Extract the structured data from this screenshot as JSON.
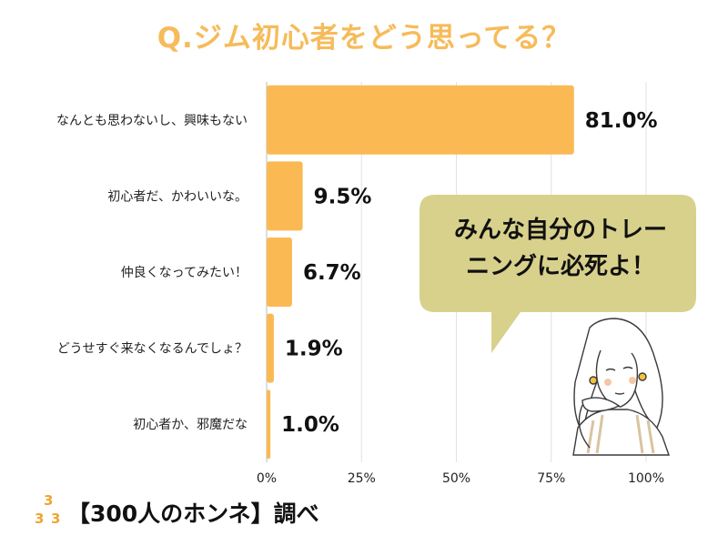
{
  "chart_data": {
    "type": "bar",
    "orientation": "horizontal",
    "title": "Q.ジム初心者をどう思ってる？",
    "categories": [
      "なんとも思わないし、興味もない",
      "初心者だ、かわいいな。",
      "仲良くなってみたい！",
      "どうせすぐ来なくなるんでしょ？",
      "初心者か、邪魔だな"
    ],
    "values": [
      81.0,
      9.5,
      6.7,
      1.9,
      1.0
    ],
    "value_labels": [
      "81.0%",
      "9.5%",
      "6.7%",
      "1.9%",
      "1.0%"
    ],
    "xlim": [
      0,
      100
    ],
    "x_ticks": [
      "0%",
      "25%",
      "50%",
      "75%",
      "100%"
    ],
    "grid": "vertical",
    "bar_color": "#fbb954",
    "title_color": "#f6bb5a"
  },
  "speech_bubble": {
    "line1": "みんな自分のトレー",
    "line2": "ニングに必死よ！",
    "color": "#d8d18c"
  },
  "footer": {
    "logo_digits": [
      "3",
      "3",
      "3"
    ],
    "text": "【300人のホンネ】調べ"
  }
}
